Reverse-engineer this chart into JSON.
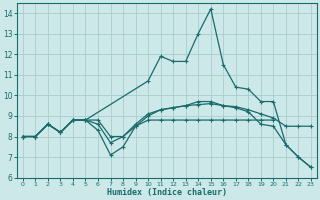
{
  "xlabel": "Humidex (Indice chaleur)",
  "bg_color": "#cce8e8",
  "grid_color": "#aacccc",
  "line_color": "#1a6b6b",
  "xlim": [
    -0.5,
    23.5
  ],
  "ylim": [
    6.0,
    14.5
  ],
  "yticks": [
    6,
    7,
    8,
    9,
    10,
    11,
    12,
    13,
    14
  ],
  "xticks": [
    0,
    1,
    2,
    3,
    4,
    5,
    6,
    7,
    8,
    9,
    10,
    11,
    12,
    13,
    14,
    15,
    16,
    17,
    18,
    19,
    20,
    21,
    22,
    23
  ],
  "lines": [
    {
      "x": [
        0,
        1,
        2,
        3,
        4,
        5,
        10,
        11,
        12,
        13,
        14,
        15,
        16,
        17,
        18,
        19,
        20,
        21,
        22,
        23
      ],
      "y": [
        8.0,
        8.0,
        8.6,
        8.2,
        8.8,
        8.8,
        10.7,
        11.9,
        11.65,
        11.65,
        13.0,
        14.2,
        11.5,
        10.4,
        10.3,
        9.7,
        9.7,
        7.6,
        7.0,
        6.5
      ]
    },
    {
      "x": [
        0,
        1,
        2,
        3,
        4,
        5,
        6,
        7,
        8,
        9,
        10,
        11,
        12,
        13,
        14,
        15,
        16,
        17,
        18,
        19,
        20
      ],
      "y": [
        8.0,
        8.0,
        8.6,
        8.2,
        8.8,
        8.8,
        8.3,
        7.1,
        7.5,
        8.5,
        8.8,
        8.8,
        8.8,
        8.8,
        8.8,
        8.8,
        8.8,
        8.8,
        8.8,
        8.8,
        8.8
      ]
    },
    {
      "x": [
        0,
        1,
        2,
        3,
        4,
        5,
        6,
        7,
        8,
        9,
        10,
        11,
        12,
        13,
        14,
        15,
        16,
        17,
        18,
        19,
        20,
        21,
        22,
        23
      ],
      "y": [
        8.0,
        8.0,
        8.6,
        8.2,
        8.8,
        8.8,
        8.6,
        7.7,
        8.0,
        8.6,
        9.1,
        9.3,
        9.4,
        9.5,
        9.55,
        9.6,
        9.5,
        9.45,
        9.3,
        9.1,
        8.9,
        8.5,
        8.5,
        8.5
      ]
    },
    {
      "x": [
        0,
        1,
        2,
        3,
        4,
        5,
        6,
        7,
        8,
        9,
        10,
        11,
        12,
        13,
        14,
        15,
        16,
        17,
        18,
        19,
        20,
        21,
        22,
        23
      ],
      "y": [
        8.0,
        8.0,
        8.6,
        8.2,
        8.8,
        8.8,
        8.8,
        8.0,
        8.0,
        8.5,
        9.0,
        9.3,
        9.4,
        9.5,
        9.7,
        9.7,
        9.5,
        9.4,
        9.2,
        8.6,
        8.5,
        7.6,
        7.0,
        6.5
      ]
    }
  ]
}
